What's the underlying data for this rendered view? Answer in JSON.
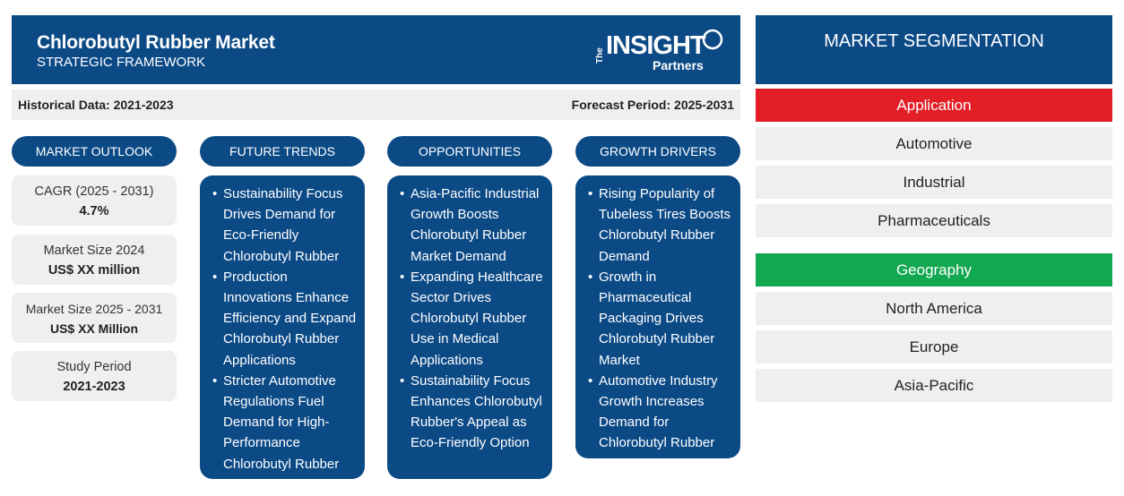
{
  "header": {
    "title": "Chlorobutyl Rubber Market",
    "subtitle": "STRATEGIC FRAMEWORK",
    "logo": {
      "the": "The",
      "insight": "INSIGHT",
      "partners": "Partners"
    }
  },
  "infobar": {
    "historical": "Historical Data: 2021-2023",
    "forecast": "Forecast Period: 2025-2031"
  },
  "columns": {
    "market_outlook": "MARKET OUTLOOK",
    "future_trends": "FUTURE TRENDS",
    "opportunities": "OPPORTUNITIES",
    "growth_drivers": "GROWTH DRIVERS"
  },
  "stats": [
    {
      "label": "CAGR (2025 - 2031)",
      "value": "4.7%"
    },
    {
      "label": "Market Size 2024",
      "value": "US$ XX million"
    },
    {
      "label": "Market Size 2025 - 2031",
      "value": "US$ XX Million"
    },
    {
      "label": "Study Period",
      "value": "2021-2023"
    }
  ],
  "future_trends": [
    "Sustainability Focus Drives Demand for Eco-Friendly Chlorobutyl Rubber",
    "Production Innovations Enhance Efficiency and Expand Chlorobutyl Rubber Applications",
    "Stricter Automotive Regulations Fuel Demand for High-Performance Chlorobutyl Rubber"
  ],
  "opportunities": [
    "Asia-Pacific Industrial Growth Boosts Chlorobutyl Rubber Market Demand",
    "Expanding Healthcare Sector Drives Chlorobutyl Rubber Use in Medical Applications",
    "Sustainability Focus Enhances Chlorobutyl Rubber's Appeal as Eco-Friendly Option"
  ],
  "growth_drivers": [
    "Rising Popularity of Tubeless Tires Boosts Chlorobutyl Rubber Demand",
    "Growth in Pharmaceutical Packaging Drives Chlorobutyl Rubber Market",
    "Automotive Industry Growth Increases Demand for Chlorobutyl Rubber"
  ],
  "segmentation": {
    "title": "MARKET SEGMENTATION",
    "application": {
      "label": "Application",
      "color": "#e31e26",
      "items": [
        "Automotive",
        "Industrial",
        "Pharmaceuticals"
      ]
    },
    "geography": {
      "label": "Geography",
      "color": "#12a84f",
      "items": [
        "North America",
        "Europe",
        "Asia-Pacific"
      ]
    }
  },
  "colors": {
    "primary": "#0c4a86",
    "panel": "#efefef"
  }
}
